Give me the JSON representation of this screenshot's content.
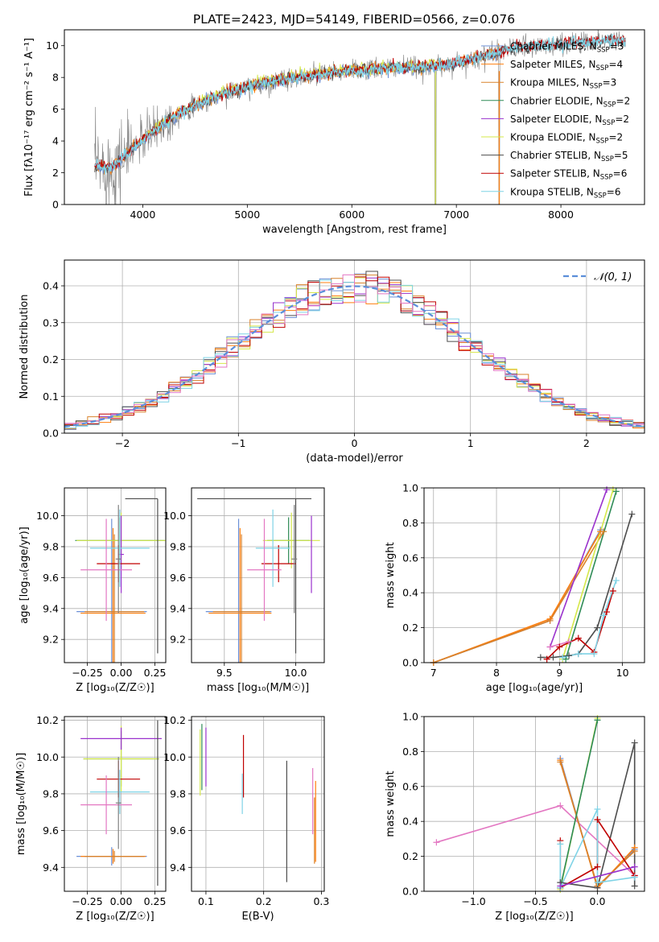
{
  "figure_title": "PLATE=2423, MJD=54149, FIBERID=0566, z=0.076",
  "colors": {
    "Chabrier MILES": "#6b8fd6",
    "Salpeter MILES": "#ff7f0e",
    "Kroupa MILES": "#d9822b",
    "Chabrier ELODIE": "#2e8b57",
    "Salpeter ELODIE": "#9a32cd",
    "Kroupa ELODIE": "#d6e84a",
    "Chabrier STELIB": "#4d4d4d",
    "Salpeter STELIB": "#c00000",
    "Kroupa STELIB": "#7fd3e6",
    "Pink": "#e377c2",
    "Gray": "#808080",
    "Normal": "#5b8ed9",
    "Grid": "#b0b0b0"
  },
  "chart_data": [
    {
      "id": "spectrum",
      "type": "line",
      "title": "PLATE=2423, MJD=54149, FIBERID=0566, z=0.076",
      "xlabel": "wavelength [Angstrom, rest frame]",
      "ylabel": "Flux [fλ10⁻¹⁷ erg cm⁻² s⁻¹ A⁻¹]",
      "xlim": [
        3250,
        8800
      ],
      "ylim": [
        0,
        11
      ],
      "xticks": [
        4000,
        5000,
        6000,
        7000,
        8000
      ],
      "yticks": [
        0,
        2,
        4,
        6,
        8,
        10
      ],
      "legend_position": "right",
      "legend": [
        {
          "name": "Chabrier MILES",
          "n_ssp": "3"
        },
        {
          "name": "Salpeter MILES",
          "n_ssp": "4"
        },
        {
          "name": "Kroupa MILES",
          "n_ssp": "3"
        },
        {
          "name": "Chabrier ELODIE",
          "n_ssp": "2"
        },
        {
          "name": "Salpeter ELODIE",
          "n_ssp": "2"
        },
        {
          "name": "Kroupa ELODIE",
          "n_ssp": "2"
        },
        {
          "name": "Chabrier STELIB",
          "n_ssp": "5"
        },
        {
          "name": "Salpeter STELIB",
          "n_ssp": "6"
        },
        {
          "name": "Kroupa STELIB",
          "n_ssp": "6"
        }
      ],
      "continuum": {
        "x": [
          3550,
          3700,
          3850,
          4000,
          4200,
          4400,
          4600,
          4800,
          5000,
          5200,
          5400,
          5600,
          5800,
          6000,
          6200,
          6400,
          6600,
          6800,
          7000,
          7200,
          7400,
          7600,
          7800,
          8000,
          8200,
          8400,
          8600
        ],
        "y": [
          2.4,
          2.3,
          3.2,
          4.1,
          5.1,
          5.9,
          6.5,
          7.0,
          7.4,
          7.7,
          7.9,
          8.1,
          8.3,
          8.4,
          8.5,
          8.6,
          8.6,
          8.7,
          8.9,
          9.2,
          9.6,
          9.9,
          10.0,
          10.1,
          10.2,
          10.3,
          10.4
        ]
      }
    },
    {
      "id": "residuals",
      "type": "histogram",
      "xlabel": "(data-model)/error",
      "ylabel": "Normed distribution",
      "xlim": [
        -2.5,
        2.5
      ],
      "ylim": [
        0,
        0.47
      ],
      "xticks": [
        -2,
        -1,
        0,
        1,
        2
      ],
      "yticks": [
        0.0,
        0.1,
        0.2,
        0.3,
        0.4
      ],
      "legend_label": "𝒩(0, 1)",
      "legend_position": "top-right",
      "bin_width": 0.1
    },
    {
      "id": "age-vs-z",
      "type": "errorbar",
      "xlabel": "Z [log₁₀(Z/Z☉)]",
      "ylabel": "age  [log₁₀(age/yr)]",
      "xlim": [
        -0.42,
        0.33
      ],
      "ylim": [
        9.05,
        10.18
      ],
      "xticks": [
        -0.25,
        0.0,
        0.25
      ],
      "xticklabels": [
        "−0.25",
        "0.00",
        "0.25"
      ],
      "yticks": [
        9.2,
        9.4,
        9.6,
        9.8,
        10.0
      ],
      "points": [
        {
          "c": "Chabrier MILES",
          "x": -0.07,
          "xerr": 0.26,
          "y": 9.38,
          "yerr": 0.6
        },
        {
          "c": "Salpeter MILES",
          "x": -0.06,
          "xerr": 0.24,
          "y": 9.37,
          "yerr": 0.55
        },
        {
          "c": "Kroupa MILES",
          "x": -0.05,
          "xerr": 0.22,
          "y": 9.38,
          "yerr": 0.5
        },
        {
          "c": "Chabrier ELODIE",
          "x": -0.01,
          "xerr": 0.33,
          "y": 9.84,
          "yerr": 0.15
        },
        {
          "c": "Kroupa ELODIE",
          "x": 0.0,
          "xerr": 0.33,
          "y": 9.84,
          "yerr": 0.18
        },
        {
          "c": "Salpeter ELODIE",
          "x": 0.0,
          "xerr": 0.02,
          "y": 9.75,
          "yerr": 0.25
        },
        {
          "c": "Chabrier STELIB",
          "x": 0.27,
          "xerr": 0.0,
          "y": 9.61,
          "yerr": 0.5
        },
        {
          "c": "Chabrier STELIB",
          "x": 0.15,
          "xerr": 0.12,
          "y": 10.11,
          "yerr": 0.0
        },
        {
          "c": "Salpeter STELIB",
          "x": -0.02,
          "xerr": 0.16,
          "y": 9.69,
          "yerr": 0.12
        },
        {
          "c": "Kroupa STELIB",
          "x": -0.01,
          "xerr": 0.22,
          "y": 9.79,
          "yerr": 0.25
        },
        {
          "c": "Pink",
          "x": -0.11,
          "xerr": 0.19,
          "y": 9.65,
          "yerr": 0.33
        },
        {
          "c": "Gray",
          "x": -0.02,
          "xerr": 0.02,
          "y": 9.72,
          "yerr": 0.35
        }
      ]
    },
    {
      "id": "age-vs-mass",
      "type": "errorbar",
      "xlabel": "mass [log₁₀(M/M☉)]",
      "ylabel": "",
      "xlim": [
        9.27,
        10.2
      ],
      "ylim": [
        9.05,
        10.18
      ],
      "xticks": [
        9.5,
        10.0
      ],
      "xticklabels": [
        "9.5",
        "10.0"
      ],
      "yticks": [
        9.2,
        9.4,
        9.6,
        9.8,
        10.0
      ],
      "points": [
        {
          "c": "Chabrier MILES",
          "x": 9.6,
          "xerr": 0.23,
          "y": 9.38,
          "yerr": 0.6
        },
        {
          "c": "Salpeter MILES",
          "x": 9.61,
          "xerr": 0.22,
          "y": 9.37,
          "yerr": 0.55
        },
        {
          "c": "Kroupa MILES",
          "x": 9.62,
          "xerr": 0.2,
          "y": 9.38,
          "yerr": 0.5
        },
        {
          "c": "Chabrier ELODIE",
          "x": 9.95,
          "xerr": 0.15,
          "y": 9.84,
          "yerr": 0.15
        },
        {
          "c": "Kroupa ELODIE",
          "x": 9.97,
          "xerr": 0.2,
          "y": 9.84,
          "yerr": 0.18
        },
        {
          "c": "Salpeter ELODIE",
          "x": 10.11,
          "xerr": 0.0,
          "y": 9.75,
          "yerr": 0.25
        },
        {
          "c": "Chabrier STELIB",
          "x": 10.0,
          "xerr": 0.0,
          "y": 9.61,
          "yerr": 0.5
        },
        {
          "c": "Chabrier STELIB",
          "x": 9.71,
          "xerr": 0.4,
          "y": 10.11,
          "yerr": 0.0
        },
        {
          "c": "Salpeter STELIB",
          "x": 9.88,
          "xerr": 0.12,
          "y": 9.69,
          "yerr": 0.12
        },
        {
          "c": "Kroupa STELIB",
          "x": 9.84,
          "xerr": 0.12,
          "y": 9.79,
          "yerr": 0.25
        },
        {
          "c": "Pink",
          "x": 9.78,
          "xerr": 0.12,
          "y": 9.65,
          "yerr": 0.33
        },
        {
          "c": "Gray",
          "x": 9.99,
          "xerr": 0.02,
          "y": 9.72,
          "yerr": 0.35
        }
      ]
    },
    {
      "id": "weight-vs-age",
      "type": "line",
      "xlabel": "age  [log₁₀(age/yr)]",
      "ylabel": "mass weight",
      "xlim": [
        6.85,
        10.35
      ],
      "ylim": [
        0,
        1.0
      ],
      "xticks": [
        7,
        8,
        9,
        10
      ],
      "xticklabels": [
        "7",
        "8",
        "9",
        "10"
      ],
      "yticks": [
        0.0,
        0.2,
        0.4,
        0.6,
        0.8,
        1.0
      ],
      "series": [
        {
          "c": "Chabrier MILES",
          "x": [
            7.0,
            8.85,
            9.65
          ],
          "y": [
            0.0,
            0.24,
            0.76
          ]
        },
        {
          "c": "Salpeter MILES",
          "x": [
            7.0,
            8.85,
            9.65
          ],
          "y": [
            0.0,
            0.25,
            0.75
          ]
        },
        {
          "c": "Kroupa MILES",
          "x": [
            7.0,
            8.85,
            9.7
          ],
          "y": [
            0.0,
            0.24,
            0.75
          ]
        },
        {
          "c": "Salpeter ELODIE",
          "x": [
            8.85,
            9.75
          ],
          "y": [
            0.09,
            0.99
          ]
        },
        {
          "c": "Kroupa ELODIE",
          "x": [
            9.05,
            9.85
          ],
          "y": [
            0.02,
            0.99
          ]
        },
        {
          "c": "Chabrier ELODIE",
          "x": [
            9.1,
            9.9
          ],
          "y": [
            0.02,
            0.98
          ]
        },
        {
          "c": "Chabrier STELIB",
          "x": [
            8.7,
            8.9,
            9.15,
            9.3,
            9.6,
            10.15
          ],
          "y": [
            0.03,
            0.03,
            0.04,
            0.05,
            0.2,
            0.85
          ]
        },
        {
          "c": "Salpeter STELIB",
          "x": [
            8.8,
            9.0,
            9.3,
            9.55,
            9.75,
            9.85
          ],
          "y": [
            0.02,
            0.09,
            0.14,
            0.06,
            0.29,
            0.41
          ]
        },
        {
          "c": "Kroupa STELIB",
          "x": [
            9.05,
            9.3,
            9.55,
            9.7,
            9.9
          ],
          "y": [
            0.03,
            0.05,
            0.05,
            0.27,
            0.47
          ]
        },
        {
          "c": "Pink",
          "x": [
            8.85,
            9.15
          ],
          "y": [
            0.09,
            0.12
          ]
        }
      ]
    },
    {
      "id": "mass-vs-z",
      "type": "errorbar",
      "xlabel": "Z [log₁₀(Z/Z☉)]",
      "ylabel": "mass [log₁₀(M/M☉)]",
      "xlim": [
        -0.42,
        0.33
      ],
      "ylim": [
        9.27,
        10.22
      ],
      "xticks": [
        -0.25,
        0.0,
        0.25
      ],
      "xticklabels": [
        "−0.25",
        "0.00",
        "0.25"
      ],
      "yticks": [
        9.4,
        9.6,
        9.8,
        10.0,
        10.2
      ],
      "points": [
        {
          "c": "Chabrier MILES",
          "x": -0.07,
          "xerr": 0.26,
          "y": 9.46,
          "yerr": 0.05
        },
        {
          "c": "Salpeter MILES",
          "x": -0.06,
          "xerr": 0.24,
          "y": 9.46,
          "yerr": 0.04
        },
        {
          "c": "Kroupa MILES",
          "x": -0.05,
          "xerr": 0.22,
          "y": 9.46,
          "yerr": 0.03
        },
        {
          "c": "Chabrier ELODIE",
          "x": 0.0,
          "xerr": 0.28,
          "y": 9.99,
          "yerr": 0.15
        },
        {
          "c": "Kroupa ELODIE",
          "x": 0.0,
          "xerr": 0.28,
          "y": 9.99,
          "yerr": 0.18
        },
        {
          "c": "Salpeter ELODIE",
          "x": 0.0,
          "xerr": 0.3,
          "y": 10.1,
          "yerr": 0.06
        },
        {
          "c": "Chabrier STELIB",
          "x": 0.27,
          "xerr": 0.0,
          "y": 9.75,
          "yerr": 0.45
        },
        {
          "c": "Salpeter STELIB",
          "x": -0.02,
          "xerr": 0.16,
          "y": 9.88,
          "yerr": 0.1
        },
        {
          "c": "Kroupa STELIB",
          "x": -0.01,
          "xerr": 0.22,
          "y": 9.81,
          "yerr": 0.12
        },
        {
          "c": "Pink",
          "x": -0.11,
          "xerr": 0.19,
          "y": 9.74,
          "yerr": 0.16
        },
        {
          "c": "Gray",
          "x": -0.02,
          "xerr": 0.02,
          "y": 9.75,
          "yerr": 0.25
        }
      ]
    },
    {
      "id": "mass-vs-ebv",
      "type": "errorbar",
      "xlabel": "E(B-V)",
      "ylabel": "",
      "xlim": [
        0.075,
        0.305
      ],
      "ylim": [
        9.27,
        10.22
      ],
      "xticks": [
        0.1,
        0.2,
        0.3
      ],
      "xticklabels": [
        "0.1",
        "0.2",
        "0.3"
      ],
      "yticks": [
        9.4,
        9.6,
        9.8,
        10.0,
        10.2
      ],
      "points": [
        {
          "c": "Kroupa ELODIE",
          "x": 0.09,
          "xerr": 0.0,
          "y": 9.97,
          "yerr": 0.18
        },
        {
          "c": "Chabrier ELODIE",
          "x": 0.093,
          "xerr": 0.0,
          "y": 10.0,
          "yerr": 0.18
        },
        {
          "c": "Salpeter ELODIE",
          "x": 0.1,
          "xerr": 0.0,
          "y": 10.0,
          "yerr": 0.16
        },
        {
          "c": "Salpeter STELIB",
          "x": 0.165,
          "xerr": 0.0,
          "y": 9.95,
          "yerr": 0.17
        },
        {
          "c": "Kroupa STELIB",
          "x": 0.163,
          "xerr": 0.0,
          "y": 9.8,
          "yerr": 0.11
        },
        {
          "c": "Chabrier STELIB",
          "x": 0.24,
          "xerr": 0.0,
          "y": 9.65,
          "yerr": 0.33
        },
        {
          "c": "Pink",
          "x": 0.285,
          "xerr": 0.0,
          "y": 9.76,
          "yerr": 0.18
        },
        {
          "c": "Salpeter MILES",
          "x": 0.29,
          "xerr": 0.0,
          "y": 9.65,
          "yerr": 0.22
        },
        {
          "c": "Kroupa MILES",
          "x": 0.288,
          "xerr": 0.0,
          "y": 9.6,
          "yerr": 0.18
        }
      ]
    },
    {
      "id": "weight-vs-z",
      "type": "line",
      "xlabel": "Z [log₁₀(Z/Z☉)]",
      "ylabel": "mass weight",
      "xlim": [
        -1.4,
        0.38
      ],
      "ylim": [
        0,
        1.0
      ],
      "xticks": [
        -1.0,
        -0.5,
        0.0
      ],
      "xticklabels": [
        "−1.0",
        "−0.5",
        "0.0"
      ],
      "yticks": [
        0.0,
        0.2,
        0.4,
        0.6,
        0.8,
        1.0
      ],
      "series": [
        {
          "c": "Pink",
          "x": [
            -1.3,
            -0.3,
            0.3
          ],
          "y": [
            0.28,
            0.49,
            0.09
          ]
        },
        {
          "c": "Chabrier MILES",
          "x": [
            -0.3,
            0.0,
            0.3
          ],
          "y": [
            0.76,
            0.02,
            0.24
          ]
        },
        {
          "c": "Salpeter MILES",
          "x": [
            -0.3,
            0.0,
            0.3
          ],
          "y": [
            0.75,
            0.02,
            0.25
          ]
        },
        {
          "c": "Kroupa MILES",
          "x": [
            -0.3,
            0.0,
            0.3
          ],
          "y": [
            0.74,
            0.03,
            0.23
          ]
        },
        {
          "c": "Kroupa ELODIE",
          "x": [
            -0.3,
            0.0
          ],
          "y": [
            0.01,
            0.99
          ]
        },
        {
          "c": "Chabrier ELODIE",
          "x": [
            -0.3,
            0.0
          ],
          "y": [
            0.02,
            0.98
          ]
        },
        {
          "c": "Chabrier STELIB",
          "x": [
            -0.3,
            0.0,
            0.3,
            0.3
          ],
          "y": [
            0.05,
            0.02,
            0.85,
            0.03
          ]
        },
        {
          "c": "Salpeter STELIB",
          "x": [
            -0.3,
            -0.3,
            0.0,
            0.0,
            0.3
          ],
          "y": [
            0.29,
            0.02,
            0.14,
            0.41,
            0.09
          ]
        },
        {
          "c": "Kroupa STELIB",
          "x": [
            -0.3,
            -0.3,
            0.0,
            0.0,
            0.3
          ],
          "y": [
            0.27,
            0.02,
            0.47,
            0.05,
            0.08
          ]
        },
        {
          "c": "Salpeter ELODIE",
          "x": [
            -0.3,
            0.3
          ],
          "y": [
            0.03,
            0.14
          ]
        }
      ]
    }
  ]
}
